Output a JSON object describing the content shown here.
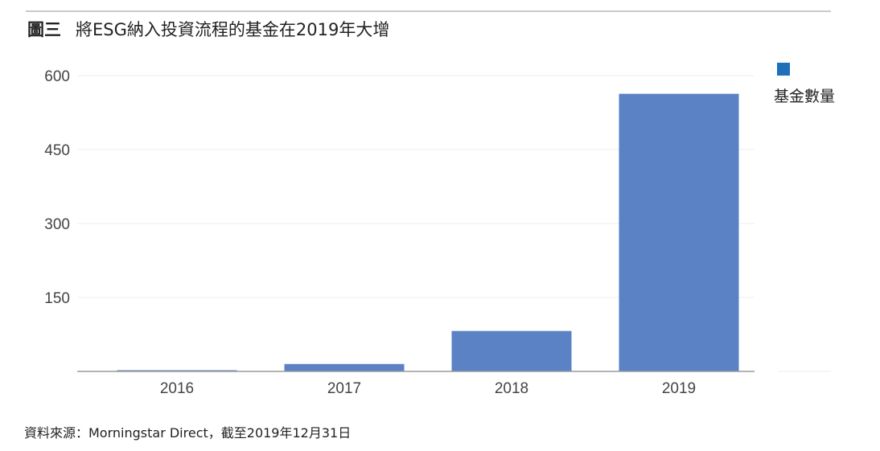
{
  "title": {
    "figure_label": "圖三",
    "text": "將ESG納入投資流程的基金在2019年大增"
  },
  "source_text": "資料來源：Morningstar Direct，截至2019年12月31日",
  "colors": {
    "bar": "#5a82c4",
    "legend_swatch": "#1f6fb9",
    "grid": "#ececec",
    "axis": "#9a9a9a"
  },
  "chart_data": {
    "type": "bar",
    "title": "將ESG納入投資流程的基金在2019年大增",
    "categories": [
      "2016",
      "2017",
      "2018",
      "2019"
    ],
    "series": [
      {
        "name": "基金數量",
        "values": [
          2,
          15,
          82,
          563
        ]
      }
    ],
    "yticks": [
      150,
      300,
      450,
      600
    ],
    "ylim": [
      0,
      600
    ],
    "xlabel": "",
    "ylabel": "",
    "grid": true,
    "legend": {
      "position": "top-right",
      "entries": [
        "基金數量"
      ]
    }
  }
}
